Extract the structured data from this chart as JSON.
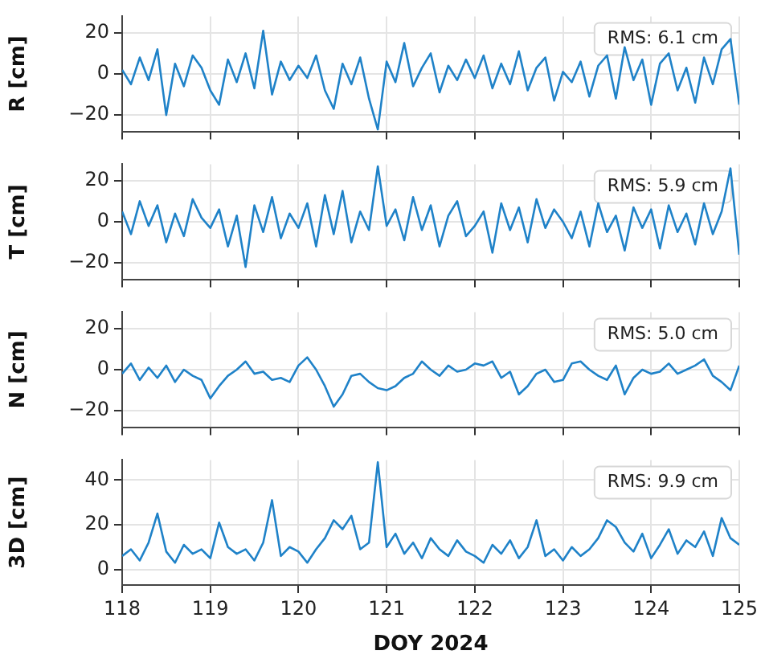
{
  "chart_data": [
    {
      "type": "line",
      "ylabel": "R [cm]",
      "annotations": [
        "RMS: 6.1 cm"
      ],
      "xlim": [
        118,
        125
      ],
      "xticks": [
        118,
        119,
        120,
        121,
        122,
        123,
        124,
        125
      ],
      "ylim": [
        -28,
        28
      ],
      "yticks": [
        -20,
        0,
        20
      ],
      "grid": true,
      "tick_labels": "y",
      "x": [
        118,
        118.1,
        118.2,
        118.3,
        118.4,
        118.5,
        118.6,
        118.7,
        118.8,
        118.9,
        119,
        119.1,
        119.2,
        119.3,
        119.4,
        119.5,
        119.6,
        119.7,
        119.8,
        119.9,
        120,
        120.1,
        120.2,
        120.3,
        120.4,
        120.5,
        120.6,
        120.7,
        120.8,
        120.9,
        121,
        121.1,
        121.2,
        121.3,
        121.4,
        121.5,
        121.6,
        121.7,
        121.8,
        121.9,
        122,
        122.1,
        122.2,
        122.3,
        122.4,
        122.5,
        122.6,
        122.7,
        122.8,
        122.9,
        123,
        123.1,
        123.2,
        123.3,
        123.4,
        123.5,
        123.6,
        123.7,
        123.8,
        123.9,
        124,
        124.1,
        124.2,
        124.3,
        124.4,
        124.5,
        124.6,
        124.7,
        124.8,
        124.9,
        125
      ],
      "series": [
        {
          "color": "#1f82c8",
          "values": [
            2,
            -5,
            8,
            -3,
            12,
            -20,
            5,
            -6,
            9,
            3,
            -8,
            -15,
            7,
            -4,
            10,
            -7,
            21,
            -10,
            6,
            -3,
            4,
            -2,
            9,
            -8,
            -17,
            5,
            -5,
            8,
            -12,
            -27,
            6,
            -4,
            15,
            -6,
            3,
            10,
            -9,
            4,
            -3,
            7,
            -2,
            9,
            -7,
            5,
            -5,
            11,
            -8,
            3,
            8,
            -13,
            1,
            -4,
            6,
            -11,
            4,
            9,
            -12,
            13,
            -3,
            7,
            -15,
            5,
            10,
            -8,
            3,
            -14,
            8,
            -5,
            12,
            17,
            -15
          ]
        }
      ]
    },
    {
      "type": "line",
      "ylabel": "T [cm]",
      "annotations": [
        "RMS: 5.9 cm"
      ],
      "xlim": [
        118,
        125
      ],
      "xticks": [
        118,
        119,
        120,
        121,
        122,
        123,
        124,
        125
      ],
      "ylim": [
        -28,
        28
      ],
      "yticks": [
        -20,
        0,
        20
      ],
      "grid": true,
      "tick_labels": "y",
      "x": [
        118,
        118.1,
        118.2,
        118.3,
        118.4,
        118.5,
        118.6,
        118.7,
        118.8,
        118.9,
        119,
        119.1,
        119.2,
        119.3,
        119.4,
        119.5,
        119.6,
        119.7,
        119.8,
        119.9,
        120,
        120.1,
        120.2,
        120.3,
        120.4,
        120.5,
        120.6,
        120.7,
        120.8,
        120.9,
        121,
        121.1,
        121.2,
        121.3,
        121.4,
        121.5,
        121.6,
        121.7,
        121.8,
        121.9,
        122,
        122.1,
        122.2,
        122.3,
        122.4,
        122.5,
        122.6,
        122.7,
        122.8,
        122.9,
        123,
        123.1,
        123.2,
        123.3,
        123.4,
        123.5,
        123.6,
        123.7,
        123.8,
        123.9,
        124,
        124.1,
        124.2,
        124.3,
        124.4,
        124.5,
        124.6,
        124.7,
        124.8,
        124.9,
        125
      ],
      "series": [
        {
          "color": "#1f82c8",
          "values": [
            5,
            -6,
            10,
            -2,
            8,
            -10,
            4,
            -7,
            11,
            2,
            -3,
            6,
            -12,
            3,
            -22,
            8,
            -5,
            12,
            -8,
            4,
            -3,
            9,
            -12,
            13,
            -6,
            15,
            -10,
            5,
            -4,
            27,
            -2,
            6,
            -9,
            12,
            -4,
            8,
            -12,
            3,
            10,
            -7,
            -2,
            5,
            -15,
            9,
            -4,
            7,
            -10,
            11,
            -3,
            6,
            0,
            -8,
            5,
            -12,
            9,
            -5,
            3,
            -14,
            7,
            -3,
            6,
            -13,
            8,
            -5,
            4,
            -11,
            9,
            -6,
            5,
            26,
            -16
          ]
        }
      ]
    },
    {
      "type": "line",
      "ylabel": "N [cm]",
      "annotations": [
        "RMS: 5.0 cm"
      ],
      "xlim": [
        118,
        125
      ],
      "xticks": [
        118,
        119,
        120,
        121,
        122,
        123,
        124,
        125
      ],
      "ylim": [
        -28,
        28
      ],
      "yticks": [
        -20,
        0,
        20
      ],
      "grid": true,
      "tick_labels": "y",
      "x": [
        118,
        118.1,
        118.2,
        118.3,
        118.4,
        118.5,
        118.6,
        118.7,
        118.8,
        118.9,
        119,
        119.1,
        119.2,
        119.3,
        119.4,
        119.5,
        119.6,
        119.7,
        119.8,
        119.9,
        120,
        120.1,
        120.2,
        120.3,
        120.4,
        120.5,
        120.6,
        120.7,
        120.8,
        120.9,
        121,
        121.1,
        121.2,
        121.3,
        121.4,
        121.5,
        121.6,
        121.7,
        121.8,
        121.9,
        122,
        122.1,
        122.2,
        122.3,
        122.4,
        122.5,
        122.6,
        122.7,
        122.8,
        122.9,
        123,
        123.1,
        123.2,
        123.3,
        123.4,
        123.5,
        123.6,
        123.7,
        123.8,
        123.9,
        124,
        124.1,
        124.2,
        124.3,
        124.4,
        124.5,
        124.6,
        124.7,
        124.8,
        124.9,
        125
      ],
      "series": [
        {
          "color": "#1f82c8",
          "values": [
            -2,
            3,
            -5,
            1,
            -4,
            2,
            -6,
            0,
            -3,
            -5,
            -14,
            -8,
            -3,
            0,
            4,
            -2,
            -1,
            -5,
            -4,
            -6,
            2,
            6,
            0,
            -8,
            -18,
            -12,
            -3,
            -2,
            -6,
            -9,
            -10,
            -8,
            -4,
            -2,
            4,
            0,
            -3,
            2,
            -1,
            0,
            3,
            2,
            4,
            -4,
            -1,
            -12,
            -8,
            -2,
            0,
            -6,
            -5,
            3,
            4,
            0,
            -3,
            -5,
            2,
            -12,
            -4,
            0,
            -2,
            -1,
            3,
            -2,
            0,
            2,
            5,
            -3,
            -6,
            -10,
            2
          ]
        }
      ]
    },
    {
      "type": "line",
      "ylabel": "3D [cm]",
      "xlabel": "DOY 2024",
      "annotations": [
        "RMS: 9.9 cm"
      ],
      "xlim": [
        118,
        125
      ],
      "xticks": [
        118,
        119,
        120,
        121,
        122,
        123,
        124,
        125
      ],
      "ylim": [
        -7,
        49
      ],
      "yticks": [
        0,
        20,
        40
      ],
      "grid": true,
      "x": [
        118,
        118.1,
        118.2,
        118.3,
        118.4,
        118.5,
        118.6,
        118.7,
        118.8,
        118.9,
        119,
        119.1,
        119.2,
        119.3,
        119.4,
        119.5,
        119.6,
        119.7,
        119.8,
        119.9,
        120,
        120.1,
        120.2,
        120.3,
        120.4,
        120.5,
        120.6,
        120.7,
        120.8,
        120.9,
        121,
        121.1,
        121.2,
        121.3,
        121.4,
        121.5,
        121.6,
        121.7,
        121.8,
        121.9,
        122,
        122.1,
        122.2,
        122.3,
        122.4,
        122.5,
        122.6,
        122.7,
        122.8,
        122.9,
        123,
        123.1,
        123.2,
        123.3,
        123.4,
        123.5,
        123.6,
        123.7,
        123.8,
        123.9,
        124,
        124.1,
        124.2,
        124.3,
        124.4,
        124.5,
        124.6,
        124.7,
        124.8,
        124.9,
        125
      ],
      "series": [
        {
          "color": "#1f82c8",
          "values": [
            6,
            9,
            4,
            12,
            25,
            8,
            3,
            11,
            7,
            9,
            5,
            21,
            10,
            7,
            9,
            4,
            12,
            31,
            6,
            10,
            8,
            3,
            9,
            14,
            22,
            18,
            24,
            9,
            12,
            48,
            10,
            16,
            7,
            12,
            5,
            14,
            9,
            6,
            13,
            8,
            6,
            3,
            11,
            7,
            13,
            5,
            10,
            22,
            6,
            9,
            4,
            10,
            6,
            9,
            14,
            22,
            19,
            12,
            8,
            16,
            5,
            11,
            18,
            7,
            13,
            10,
            17,
            6,
            23,
            14,
            11
          ]
        }
      ]
    }
  ]
}
